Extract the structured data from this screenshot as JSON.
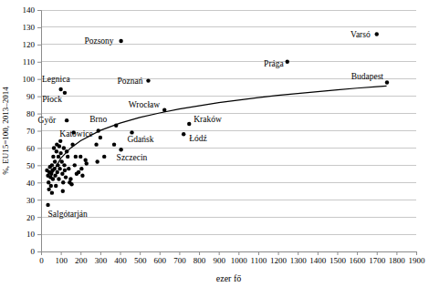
{
  "chart_data": {
    "type": "scatter",
    "x_label": "ezer fő",
    "y_label": "%, EU15=100, 2013–2014",
    "xlim": [
      0,
      1900
    ],
    "xticks": [
      0,
      100,
      200,
      300,
      400,
      500,
      600,
      700,
      800,
      900,
      1000,
      1100,
      1200,
      1300,
      1400,
      1500,
      1600,
      1700,
      1800,
      1900
    ],
    "ylim": [
      0,
      140
    ],
    "yticks": [
      0,
      10,
      20,
      30,
      40,
      50,
      60,
      70,
      80,
      90,
      100,
      110,
      120,
      130,
      140
    ],
    "grid": true,
    "series": [
      {
        "type": "scatter",
        "color": "#000000",
        "marker": "circle",
        "x": [
          1700,
          1752,
          1247,
          405,
          543,
          750,
          722,
          460,
          625,
          380,
          405,
          290,
          130,
          120,
          100,
          35,
          30,
          35,
          38,
          40,
          42,
          45,
          48,
          50,
          52,
          55,
          55,
          58,
          60,
          62,
          65,
          68,
          70,
          72,
          75,
          78,
          80,
          82,
          85,
          88,
          90,
          92,
          95,
          98,
          100,
          105,
          108,
          110,
          112,
          115,
          118,
          120,
          125,
          130,
          135,
          140,
          145,
          150,
          155,
          160,
          165,
          170,
          175,
          180,
          190,
          200,
          205,
          210,
          225,
          230,
          280,
          285,
          300,
          320,
          370
        ],
        "values": [
          126,
          98,
          110,
          122,
          99,
          74,
          68,
          69,
          82,
          73,
          59,
          70,
          76,
          92,
          94,
          27,
          47,
          44,
          40,
          36,
          46,
          49,
          43,
          38,
          45,
          50,
          34,
          47,
          42,
          55,
          60,
          48,
          52,
          44,
          38,
          58,
          62,
          46,
          50,
          55,
          42,
          61,
          48,
          64,
          57,
          52,
          45,
          35,
          40,
          60,
          50,
          47,
          43,
          58,
          55,
          48,
          40,
          42,
          39,
          62,
          69,
          50,
          55,
          45,
          46,
          55,
          48,
          44,
          53,
          51,
          62,
          52,
          66,
          55,
          62
        ],
        "labels": [
          "Varsó",
          "Budapest",
          "Prága",
          "Pozsony",
          "Poznań",
          "Kraków",
          "Łódź",
          "Gdańsk",
          "Wrocław",
          "Brno",
          "Szczecin",
          "Katowice",
          "Győr",
          "Płock",
          "Legnica",
          "Salgótarján",
          null,
          null,
          null,
          null,
          null,
          null,
          null,
          null,
          null,
          null,
          null,
          null,
          null,
          null,
          null,
          null,
          null,
          null,
          null,
          null,
          null,
          null,
          null,
          null,
          null,
          null,
          null,
          null,
          null,
          null,
          null,
          null,
          null,
          null,
          null,
          null,
          null,
          null,
          null,
          null,
          null,
          null,
          null,
          null,
          null,
          null,
          null,
          null,
          null,
          null,
          null,
          null,
          null,
          null,
          null,
          null,
          null,
          null,
          null
        ]
      },
      {
        "type": "line",
        "color": "#000000",
        "line_style": "solid",
        "x": [
          50,
          100,
          150,
          200,
          300,
          400,
          500,
          600,
          700,
          800,
          900,
          1000,
          1100,
          1200,
          1300,
          1400,
          1500,
          1600,
          1700,
          1750
        ],
        "values": [
          43.9,
          54.1,
          60.0,
          64.2,
          70.2,
          74.4,
          77.7,
          80.3,
          82.6,
          84.5,
          86.3,
          87.8,
          89.2,
          90.5,
          91.6,
          92.7,
          93.7,
          94.7,
          95.6,
          96.0
        ]
      }
    ]
  }
}
